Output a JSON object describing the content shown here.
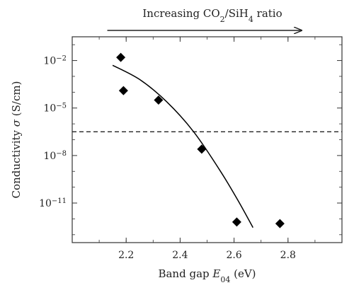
{
  "chart_data": {
    "type": "scatter",
    "title": "",
    "xlabel": {
      "prefix": "Band gap ",
      "symbol": "E",
      "sub": "04",
      "suffix": " (eV)"
    },
    "ylabel": {
      "prefix": "Conductivity ",
      "symbol": "σ",
      "suffix": " (S/cm)"
    },
    "x_scale": "linear",
    "y_scale": "log",
    "xlim": [
      2.0,
      3.0
    ],
    "ylim_log10": [
      -13.5,
      -0.5
    ],
    "x_ticks": [
      2.2,
      2.4,
      2.6,
      2.8
    ],
    "x_tick_labels": [
      "2.2",
      "2.4",
      "2.6",
      "2.8"
    ],
    "y_ticks_log10": [
      -2,
      -5,
      -8,
      -11
    ],
    "y_tick_labels": [
      {
        "base": "10",
        "exp": "−2"
      },
      {
        "base": "10",
        "exp": "−5"
      },
      {
        "base": "10",
        "exp": "−8"
      },
      {
        "base": "10",
        "exp": "−11"
      }
    ],
    "grid": false,
    "points": [
      {
        "x": 2.18,
        "log10_y": -1.8
      },
      {
        "x": 2.19,
        "log10_y": -3.9
      },
      {
        "x": 2.32,
        "log10_y": -4.5
      },
      {
        "x": 2.48,
        "log10_y": -7.6
      },
      {
        "x": 2.61,
        "log10_y": -12.2
      },
      {
        "x": 2.77,
        "log10_y": -12.3
      }
    ],
    "fit_curve": [
      {
        "x": 2.15,
        "log10_y": -2.3
      },
      {
        "x": 2.25,
        "log10_y": -3.2
      },
      {
        "x": 2.35,
        "log10_y": -4.6
      },
      {
        "x": 2.45,
        "log10_y": -6.5
      },
      {
        "x": 2.55,
        "log10_y": -9.0
      },
      {
        "x": 2.62,
        "log10_y": -11.0
      },
      {
        "x": 2.67,
        "log10_y": -12.55
      }
    ],
    "threshold_log10_y": -6.5,
    "annotation": {
      "prefix": "Increasing CO",
      "sub1": "2",
      "middle": "/SiH",
      "sub2": "4",
      "suffix": " ratio",
      "arrow_x_range": [
        2.13,
        2.85
      ]
    },
    "colors": {
      "marker": "#000000",
      "curve": "#000000",
      "axes": "#333333",
      "text": "#222222"
    }
  }
}
